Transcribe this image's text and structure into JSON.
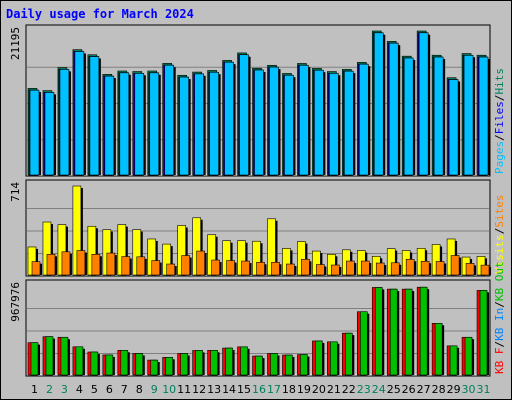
{
  "colors": {
    "background": "#c0c0c0",
    "title": "#0000ff",
    "hits": "#00805c",
    "files": "#0000ff",
    "pages": "#00c0ff",
    "visits": "#ffff00",
    "sites": "#ff8000",
    "kb_in": "#0080ff",
    "kb_out": "#00c000",
    "kb_f": "#ff0000",
    "weekend": "#00805c",
    "weekday": "#000000"
  },
  "chart_data": {
    "title": "Daily usage for March 2024",
    "type": "bar",
    "days": [
      1,
      2,
      3,
      4,
      5,
      6,
      7,
      8,
      9,
      10,
      11,
      12,
      13,
      14,
      15,
      16,
      17,
      18,
      19,
      20,
      21,
      22,
      23,
      24,
      25,
      26,
      27,
      28,
      29,
      30,
      31
    ],
    "weekend_days": [
      2,
      3,
      9,
      10,
      16,
      17,
      23,
      24,
      30,
      31
    ],
    "panels": [
      {
        "key": "hits_files_pages",
        "y_max_label": "21195",
        "y_max": 21195,
        "legend": [
          "Pages",
          "/",
          "Files",
          "/",
          "Hits"
        ],
        "series": [
          {
            "name": "Hits",
            "values": [
              12750,
              12420,
              15810,
              18450,
              17700,
              14820,
              15310,
              15230,
              15310,
              16430,
              14680,
              15150,
              15390,
              16870,
              17970,
              15720,
              16150,
              14950,
              16420,
              15690,
              15230,
              15550,
              16580,
              21195,
              19670,
              17490,
              21195,
              17630,
              14320,
              17880,
              17630
            ]
          },
          {
            "name": "Files",
            "values": [
              12500,
              12170,
              15560,
              18200,
              17450,
              14570,
              15060,
              14980,
              15060,
              16180,
              14430,
              14900,
              15140,
              16620,
              17720,
              15470,
              15900,
              14700,
              16170,
              15440,
              14980,
              15300,
              16330,
              20950,
              19420,
              17240,
              20950,
              17380,
              14070,
              17630,
              17380
            ]
          },
          {
            "name": "Pages",
            "values": [
              12480,
              12150,
              15540,
              18180,
              17430,
              14550,
              15040,
              14960,
              15040,
              16160,
              14410,
              14880,
              15120,
              16600,
              17700,
              15450,
              15880,
              14680,
              16150,
              15420,
              14960,
              15280,
              16310,
              20930,
              19400,
              17220,
              20930,
              17360,
              14050,
              17610,
              17360
            ]
          }
        ]
      },
      {
        "key": "visits_sites",
        "y_max_label": "714",
        "y_max": 714,
        "legend": [
          "Visits",
          "/",
          "Sites"
        ],
        "series": [
          {
            "name": "Visits",
            "values": [
              225,
              425,
              404,
              714,
              391,
              364,
              404,
              364,
              289,
              248,
              397,
              459,
              323,
              275,
              275,
              271,
              451,
              213,
              268,
              192,
              166,
              202,
              196,
              150,
              211,
              196,
              214,
              245,
              289,
              144,
              149
            ]
          },
          {
            "name": "Sites",
            "values": [
              107,
              166,
              186,
              196,
              166,
              176,
              148,
              146,
              116,
              88,
              156,
              192,
              120,
              116,
              112,
              102,
              102,
              88,
              126,
              84,
              80,
              112,
              112,
              96,
              98,
              126,
              110,
              108,
              156,
              93,
              79
            ]
          }
        ]
      },
      {
        "key": "kbytes",
        "y_max_label": "967976",
        "y_max": 967976,
        "legend": [
          "KB F",
          "/",
          "KB In",
          "/",
          "KB Out"
        ],
        "series": [
          {
            "name": "KB F",
            "values": [
              351670,
              417000,
              410400,
              306800,
              250000,
              218000,
              268000,
              234000,
              162000,
              192000,
              234000,
              267000,
              268000,
              293000,
              306000,
              206000,
              234000,
              217000,
              222000,
              370000,
              361000,
              455000,
              688000,
              952000,
              934000,
              934000,
              955000,
              562000,
              317000,
              410400,
              920000
            ]
          },
          {
            "name": "KB Out",
            "values": [
              351670,
              417000,
              410400,
              306800,
              250000,
              218000,
              268000,
              234000,
              162000,
              192000,
              234000,
              267000,
              268000,
              293000,
              306000,
              206000,
              234000,
              217000,
              222000,
              370000,
              361000,
              455000,
              688000,
              952000,
              934000,
              934000,
              955000,
              562000,
              317000,
              410400,
              920000
            ]
          }
        ]
      }
    ]
  }
}
